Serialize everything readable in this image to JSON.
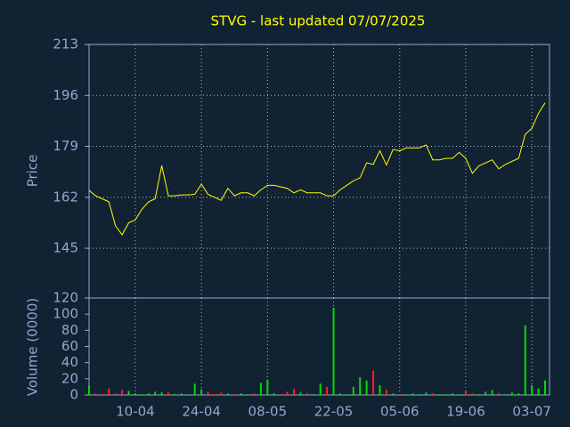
{
  "chart_data": [
    {
      "type": "line",
      "title": "STVG - last updated 07/07/2025",
      "ylabel": "Price",
      "categories": [
        null,
        null,
        null,
        null,
        null,
        null,
        null,
        "10-04",
        null,
        null,
        null,
        null,
        null,
        null,
        null,
        null,
        null,
        "24-04",
        null,
        null,
        null,
        null,
        null,
        null,
        null,
        null,
        null,
        "08-05",
        null,
        null,
        null,
        null,
        null,
        null,
        null,
        null,
        null,
        "22-05",
        null,
        null,
        null,
        null,
        null,
        null,
        null,
        null,
        null,
        "05-06",
        null,
        null,
        null,
        null,
        null,
        null,
        null,
        null,
        null,
        "19-06",
        null,
        null,
        null,
        null,
        null,
        null,
        null,
        null,
        null,
        "03-07",
        null,
        null
      ],
      "values": [
        164.3,
        162.5,
        161.5,
        160.5,
        152.5,
        149.5,
        153.5,
        154.5,
        158,
        160.5,
        161.5,
        172.6,
        162.5,
        162.5,
        162.8,
        162.8,
        163,
        166.4,
        163,
        162,
        161,
        165,
        162.5,
        163.5,
        163.5,
        162.5,
        164.5,
        166,
        166,
        165.5,
        165,
        163.5,
        164.5,
        163.5,
        163.5,
        163.5,
        162.5,
        162.5,
        164.5,
        166,
        167.5,
        168.5,
        173.5,
        173,
        177.5,
        172.8,
        178,
        177.5,
        178.5,
        178.5,
        178.5,
        179.5,
        174.5,
        174.5,
        175,
        175,
        177,
        175,
        170,
        172.5,
        173.5,
        174.5,
        171.5,
        173,
        174,
        175,
        183,
        185,
        190,
        193.5
      ],
      "color": "#ffff00",
      "ylim": [
        128.4,
        213
      ],
      "yticks": [
        145,
        162,
        179,
        196,
        213
      ],
      "grid": true
    },
    {
      "type": "bar",
      "ylabel": "Volume (0000)",
      "values": [
        12,
        2,
        1,
        8,
        2,
        6,
        5,
        2,
        1,
        2,
        4,
        3,
        3,
        1,
        2,
        1,
        14,
        7,
        4,
        1,
        3,
        2,
        1,
        2,
        1,
        2,
        15,
        19,
        2,
        1,
        4,
        7,
        3,
        2,
        1,
        14,
        10,
        108,
        2,
        1,
        10,
        22,
        18,
        30,
        12,
        6,
        2,
        1,
        1,
        2,
        1,
        3,
        2,
        1,
        1,
        2,
        1,
        5,
        2,
        1,
        4,
        6,
        2,
        1,
        3,
        2,
        86,
        12,
        8,
        18
      ],
      "up_color": "#00dd00",
      "down_color": "#ff2222",
      "ylim": [
        0,
        120
      ],
      "yticks": [
        0,
        20,
        40,
        60,
        80,
        100,
        120
      ],
      "grid": false
    }
  ]
}
